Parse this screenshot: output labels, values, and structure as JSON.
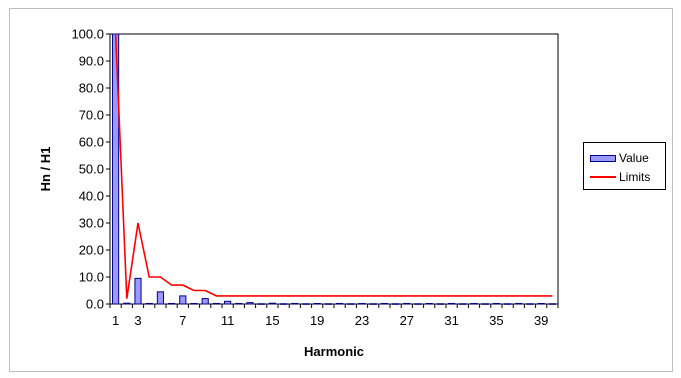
{
  "chart_data": {
    "type": "bar",
    "xlabel": "Harmonic",
    "ylabel": "Hn / H1",
    "ylim": [
      0,
      100
    ],
    "yticks": [
      "0.0",
      "10.0",
      "20.0",
      "30.0",
      "40.0",
      "50.0",
      "60.0",
      "70.0",
      "80.0",
      "90.0",
      "100.0"
    ],
    "x": [
      1,
      2,
      3,
      4,
      5,
      6,
      7,
      8,
      9,
      10,
      11,
      12,
      13,
      14,
      15,
      16,
      17,
      18,
      19,
      20,
      21,
      22,
      23,
      24,
      25,
      26,
      27,
      28,
      29,
      30,
      31,
      32,
      33,
      34,
      35,
      36,
      37,
      38,
      39,
      40
    ],
    "xtick_labels": [
      "1",
      "3",
      "7",
      "11",
      "15",
      "19",
      "23",
      "27",
      "31",
      "35",
      "39"
    ],
    "xtick_values": [
      1,
      3,
      7,
      11,
      15,
      19,
      23,
      27,
      31,
      35,
      39
    ],
    "series": [
      {
        "name": "Value",
        "kind": "bar",
        "color": "#9999ff",
        "edge_color": "#000080",
        "values": [
          100,
          0.3,
          9.5,
          0.2,
          4.5,
          0.2,
          3.0,
          0.2,
          2.0,
          0.2,
          1.0,
          0.2,
          0.5,
          0.1,
          0.3,
          0.1,
          0.2,
          0.1,
          0.2,
          0.1,
          0.2,
          0.1,
          0.2,
          0.1,
          0.2,
          0.1,
          0.2,
          0.1,
          0.2,
          0.1,
          0.2,
          0.1,
          0.2,
          0.1,
          0.2,
          0.1,
          0.2,
          0.1,
          0.2,
          0.1
        ]
      },
      {
        "name": "Limits",
        "kind": "line",
        "color": "#ff0000",
        "values": [
          100,
          2,
          30,
          10,
          10,
          7,
          7,
          5,
          5,
          3,
          3,
          3,
          3,
          3,
          3,
          3,
          3,
          3,
          3,
          3,
          3,
          3,
          3,
          3,
          3,
          3,
          3,
          3,
          3,
          3,
          3,
          3,
          3,
          3,
          3,
          3,
          3,
          3,
          3,
          3
        ]
      }
    ],
    "legend_position": "right",
    "grid": false
  }
}
